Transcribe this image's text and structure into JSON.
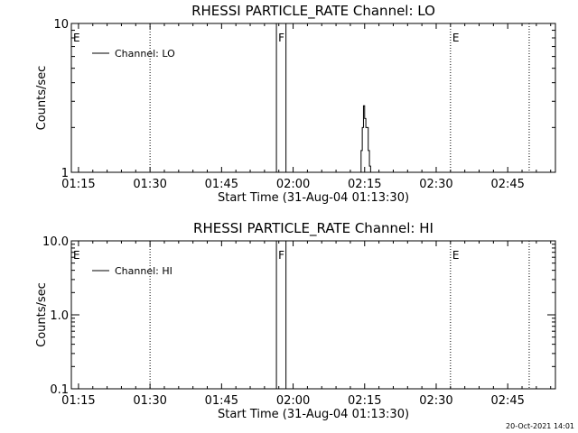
{
  "chart_data": [
    {
      "type": "line",
      "title": "RHESSI PARTICLE_RATE Channel: LO",
      "xlabel": "Start Time (31-Aug-04 01:13:30)",
      "ylabel": "Counts/sec",
      "y_scale": "log",
      "ylim": [
        1,
        10
      ],
      "y_ticks": [
        {
          "v": 1,
          "label": "1"
        },
        {
          "v": 10,
          "label": "10"
        }
      ],
      "xlim": [
        "01:13:30",
        "02:55:00"
      ],
      "x_ticks": [
        "01:15",
        "01:30",
        "01:45",
        "02:00",
        "02:15",
        "02:30",
        "02:45"
      ],
      "grid": false,
      "legend": "top-left",
      "series": [
        {
          "name": "Channel: LO",
          "x": [
            "01:13:30",
            "02:14:00",
            "02:14:15",
            "02:14:30",
            "02:14:45",
            "02:15:00",
            "02:15:15",
            "02:15:30",
            "02:15:45",
            "02:16:00",
            "02:16:15",
            "02:55:00"
          ],
          "y": [
            1,
            1,
            1.4,
            2.0,
            2.8,
            2.3,
            2.0,
            2.0,
            1.4,
            1.1,
            1,
            1
          ]
        }
      ],
      "markers": [
        {
          "time": "01:13:30",
          "label": "E",
          "style": "dotted"
        },
        {
          "time": "01:30:00",
          "label": "",
          "style": "dotted"
        },
        {
          "time": "01:56:30",
          "label": "F",
          "style": "solid"
        },
        {
          "time": "01:58:30",
          "label": "",
          "style": "solid"
        },
        {
          "time": "02:33:00",
          "label": "E",
          "style": "dotted"
        },
        {
          "time": "02:49:30",
          "label": "",
          "style": "dotted"
        }
      ]
    },
    {
      "type": "line",
      "title": "RHESSI PARTICLE_RATE Channel: HI",
      "xlabel": "Start Time (31-Aug-04 01:13:30)",
      "ylabel": "Counts/sec",
      "y_scale": "log",
      "ylim": [
        0.1,
        10
      ],
      "y_ticks": [
        {
          "v": 0.1,
          "label": "0.1"
        },
        {
          "v": 1,
          "label": "1.0"
        },
        {
          "v": 10,
          "label": "10.0"
        }
      ],
      "xlim": [
        "01:13:30",
        "02:55:00"
      ],
      "x_ticks": [
        "01:15",
        "01:30",
        "01:45",
        "02:00",
        "02:15",
        "02:30",
        "02:45"
      ],
      "grid": false,
      "legend": "top-left",
      "series": [
        {
          "name": "Channel: HI",
          "x": [],
          "y": []
        }
      ],
      "markers": [
        {
          "time": "01:13:30",
          "label": "E",
          "style": "dotted"
        },
        {
          "time": "01:30:00",
          "label": "",
          "style": "dotted"
        },
        {
          "time": "01:56:30",
          "label": "F",
          "style": "solid"
        },
        {
          "time": "01:58:30",
          "label": "",
          "style": "solid"
        },
        {
          "time": "02:33:00",
          "label": "E",
          "style": "dotted"
        },
        {
          "time": "02:49:30",
          "label": "",
          "style": "dotted"
        }
      ]
    }
  ],
  "footer": {
    "timestamp": "20-Oct-2021 14:01"
  }
}
